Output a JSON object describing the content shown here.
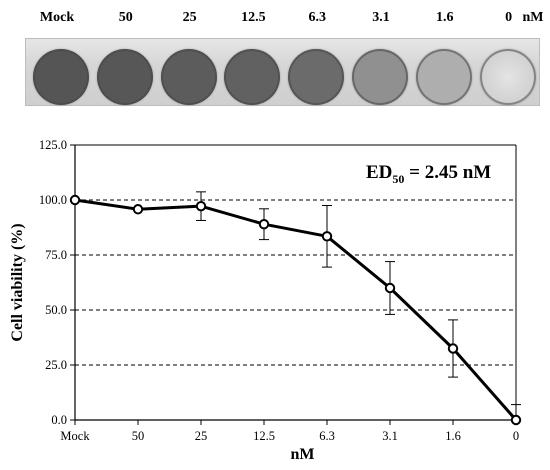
{
  "plate": {
    "labels": [
      "Mock",
      "50",
      "25",
      "12.5",
      "6.3",
      "3.1",
      "1.6",
      "0"
    ],
    "unit": "nM",
    "well_colors": [
      "#555555",
      "#575757",
      "#5c5c5c",
      "#616161",
      "#6b6b6b",
      "#909090",
      "#aeaeae",
      "#d2d2d2"
    ]
  },
  "chart_data": {
    "type": "line",
    "categories": [
      "Mock",
      "50",
      "25",
      "12.5",
      "6.3",
      "3.1",
      "1.6",
      "0"
    ],
    "series": [
      {
        "values": [
          100.0,
          95.8,
          97.2,
          89.0,
          83.5,
          60.0,
          32.5,
          0.0
        ],
        "error": [
          0,
          0,
          6.5,
          7.0,
          14.0,
          12.0,
          13.0,
          7.0
        ]
      }
    ],
    "xlabel": "nM",
    "ylabel": "Cell viability (%)",
    "ylim": [
      0,
      125
    ],
    "y_ticks": [
      "0.0",
      "25.0",
      "50.0",
      "75.0",
      "100.0",
      "125.0"
    ],
    "grid": true,
    "annotation": {
      "main": "ED",
      "subscript": "50",
      "rest": " = 2.45 nM"
    }
  }
}
